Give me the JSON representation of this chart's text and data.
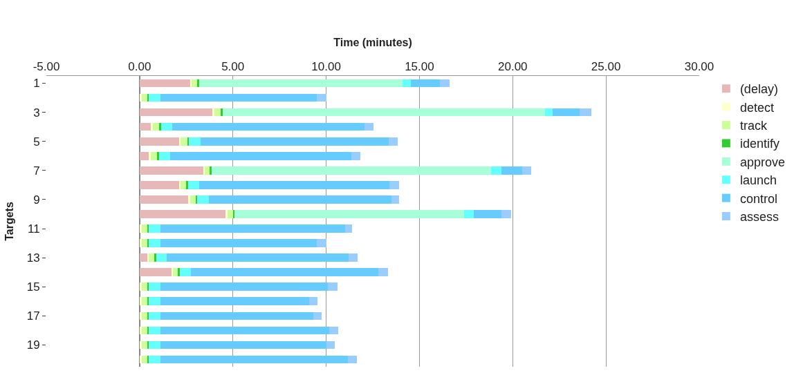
{
  "chart_data": {
    "type": "bar",
    "orientation": "horizontal",
    "stacked": true,
    "xlabel": "Time (minutes)",
    "ylabel": "Targets",
    "categories": [
      "1",
      null,
      "3",
      null,
      "5",
      null,
      "7",
      null,
      "9",
      null,
      "11",
      null,
      "13",
      null,
      "15",
      null,
      "17",
      null,
      "19",
      null
    ],
    "series": [
      {
        "name": "(delay)",
        "color": "#e6b9b8",
        "values": [
          2.7,
          0,
          3.9,
          0.6,
          2.1,
          0.5,
          3.4,
          2.1,
          2.6,
          4.6,
          0,
          0,
          0.4,
          1.7,
          0,
          0,
          0,
          0,
          0,
          0
        ]
      },
      {
        "name": "detect",
        "color": "#ffffcc",
        "values": [
          0.1,
          0.1,
          0.1,
          0.1,
          0.1,
          0.1,
          0.1,
          0.1,
          0.1,
          0.1,
          0.1,
          0.1,
          0.1,
          0.1,
          0.1,
          0.1,
          0.1,
          0.1,
          0.1,
          0.1
        ]
      },
      {
        "name": "track",
        "color": "#ccff99",
        "values": [
          0.3,
          0.3,
          0.35,
          0.35,
          0.35,
          0.35,
          0.25,
          0.3,
          0.3,
          0.3,
          0.3,
          0.3,
          0.3,
          0.25,
          0.3,
          0.3,
          0.3,
          0.3,
          0.3,
          0.3
        ]
      },
      {
        "name": "identify",
        "color": "#33cc33",
        "values": [
          0.1,
          0.1,
          0.1,
          0.1,
          0.1,
          0.1,
          0.1,
          0.1,
          0.1,
          0.1,
          0.1,
          0.1,
          0.1,
          0.1,
          0.1,
          0.1,
          0.1,
          0.1,
          0.1,
          0.1
        ]
      },
      {
        "name": "approve",
        "color": "#a6ffd9",
        "values": [
          10.9,
          0,
          17.3,
          0,
          0,
          0,
          15.0,
          0,
          0,
          12.3,
          0,
          0,
          0,
          0,
          0,
          0,
          0,
          0,
          0,
          0
        ]
      },
      {
        "name": "launch",
        "color": "#66ffff",
        "values": [
          0.45,
          0.6,
          0.4,
          0.6,
          0.6,
          0.6,
          0.55,
          0.6,
          0.6,
          0.5,
          0.6,
          0.6,
          0.55,
          0.6,
          0.6,
          0.6,
          0.6,
          0.6,
          0.6,
          0.6
        ]
      },
      {
        "name": "control",
        "color": "#66ccff",
        "values": [
          1.55,
          8.4,
          1.45,
          10.3,
          10.1,
          9.7,
          1.1,
          10.2,
          9.8,
          1.5,
          9.9,
          8.4,
          9.75,
          10.05,
          9.0,
          8.0,
          8.2,
          9.05,
          8.9,
          10.05
        ]
      },
      {
        "name": "assess",
        "color": "#99ccff",
        "values": [
          0.5,
          0.5,
          0.6,
          0.5,
          0.5,
          0.5,
          0.5,
          0.5,
          0.4,
          0.5,
          0.4,
          0.5,
          0.5,
          0.5,
          0.5,
          0.45,
          0.45,
          0.5,
          0.45,
          0.5
        ]
      }
    ],
    "xlim": [
      -5,
      30
    ],
    "xticks": [
      {
        "value": -5,
        "label": "-5.00"
      },
      {
        "value": 0,
        "label": "0.00"
      },
      {
        "value": 5,
        "label": "5.00"
      },
      {
        "value": 10,
        "label": "10.00"
      },
      {
        "value": 15,
        "label": "15.00"
      },
      {
        "value": 20,
        "label": "20.00"
      },
      {
        "value": 25,
        "label": "25.00"
      },
      {
        "value": 30,
        "label": "30.00"
      }
    ],
    "grid": "x",
    "legend": "right"
  }
}
